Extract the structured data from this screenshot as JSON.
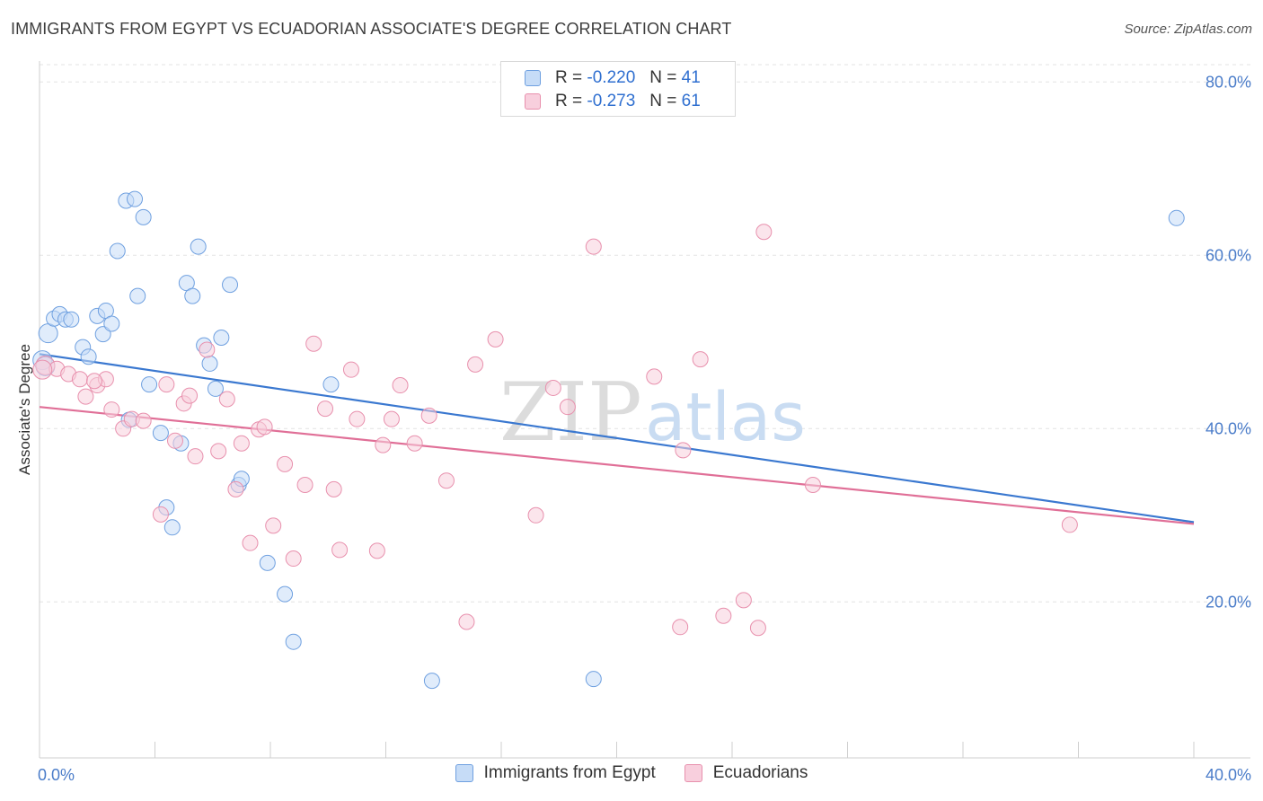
{
  "header": {
    "title": "IMMIGRANTS FROM EGYPT VS ECUADORIAN ASSOCIATE'S DEGREE CORRELATION CHART",
    "source": "Source: ZipAtlas.com"
  },
  "watermark": {
    "zip": "ZIP",
    "atlas": "atlas"
  },
  "legend": {
    "series": [
      {
        "r_label": "R =",
        "r_value": "-0.220",
        "n_label": "N =",
        "n_value": "41",
        "color": "#6fa0e0",
        "fill": "#c6dcf7"
      },
      {
        "r_label": "R =",
        "r_value": "-0.273",
        "n_label": "N =",
        "n_value": "61",
        "color": "#e890ad",
        "fill": "#f8cfdd"
      }
    ]
  },
  "chart_data": {
    "type": "scatter",
    "title": "IMMIGRANTS FROM EGYPT VS ECUADORIAN ASSOCIATE'S DEGREE CORRELATION CHART",
    "xlabel": "",
    "ylabel": "Associate's Degree",
    "xlim": [
      0,
      40
    ],
    "ylim": [
      2,
      82
    ],
    "x_tick_labels": [
      "0.0%",
      "40.0%"
    ],
    "y_ticks": [
      20,
      40,
      60,
      80
    ],
    "y_tick_labels": [
      "20.0%",
      "40.0%",
      "60.0%",
      "80.0%"
    ],
    "grid": true,
    "legend_position": "top-center",
    "series": [
      {
        "name": "Immigrants from Egypt",
        "color": "#3a78d0",
        "trend": {
          "x": [
            0,
            40
          ],
          "y": [
            48.6,
            29.2
          ]
        },
        "points": [
          {
            "x": 0.3,
            "y": 51.0
          },
          {
            "x": 0.5,
            "y": 52.7
          },
          {
            "x": 0.7,
            "y": 53.2
          },
          {
            "x": 0.9,
            "y": 52.6
          },
          {
            "x": 1.1,
            "y": 52.6
          },
          {
            "x": 1.5,
            "y": 49.4
          },
          {
            "x": 1.7,
            "y": 48.3
          },
          {
            "x": 2.0,
            "y": 53.0
          },
          {
            "x": 2.2,
            "y": 50.9
          },
          {
            "x": 2.3,
            "y": 53.6
          },
          {
            "x": 2.5,
            "y": 52.1
          },
          {
            "x": 2.7,
            "y": 60.5
          },
          {
            "x": 3.0,
            "y": 66.3
          },
          {
            "x": 3.3,
            "y": 66.5
          },
          {
            "x": 3.4,
            "y": 55.3
          },
          {
            "x": 3.6,
            "y": 64.4
          },
          {
            "x": 3.1,
            "y": 41.0
          },
          {
            "x": 3.8,
            "y": 45.1
          },
          {
            "x": 4.2,
            "y": 39.5
          },
          {
            "x": 4.4,
            "y": 30.9
          },
          {
            "x": 4.6,
            "y": 28.6
          },
          {
            "x": 4.9,
            "y": 38.3
          },
          {
            "x": 5.1,
            "y": 56.8
          },
          {
            "x": 5.3,
            "y": 55.3
          },
          {
            "x": 5.5,
            "y": 61.0
          },
          {
            "x": 5.7,
            "y": 49.6
          },
          {
            "x": 5.9,
            "y": 47.5
          },
          {
            "x": 6.1,
            "y": 44.6
          },
          {
            "x": 6.3,
            "y": 50.5
          },
          {
            "x": 6.6,
            "y": 56.6
          },
          {
            "x": 6.9,
            "y": 33.5
          },
          {
            "x": 7.0,
            "y": 34.2
          },
          {
            "x": 7.9,
            "y": 24.5
          },
          {
            "x": 8.8,
            "y": 15.4
          },
          {
            "x": 8.5,
            "y": 20.9
          },
          {
            "x": 10.1,
            "y": 45.1
          },
          {
            "x": 13.6,
            "y": 10.9
          },
          {
            "x": 19.2,
            "y": 11.1
          },
          {
            "x": 39.4,
            "y": 64.3
          },
          {
            "x": 0.1,
            "y": 47.9
          },
          {
            "x": 0.2,
            "y": 47.2
          }
        ]
      },
      {
        "name": "Ecuadorians",
        "color": "#e06f97",
        "trend": {
          "x": [
            0,
            40
          ],
          "y": [
            42.5,
            29.0
          ]
        },
        "points": [
          {
            "x": 0.2,
            "y": 47.3
          },
          {
            "x": 0.6,
            "y": 46.9
          },
          {
            "x": 1.0,
            "y": 46.3
          },
          {
            "x": 1.4,
            "y": 45.7
          },
          {
            "x": 1.6,
            "y": 43.7
          },
          {
            "x": 2.0,
            "y": 45.0
          },
          {
            "x": 2.3,
            "y": 45.7
          },
          {
            "x": 2.5,
            "y": 42.2
          },
          {
            "x": 2.9,
            "y": 40.0
          },
          {
            "x": 3.2,
            "y": 41.1
          },
          {
            "x": 3.6,
            "y": 40.9
          },
          {
            "x": 4.2,
            "y": 30.1
          },
          {
            "x": 4.4,
            "y": 45.1
          },
          {
            "x": 4.7,
            "y": 38.6
          },
          {
            "x": 5.0,
            "y": 42.9
          },
          {
            "x": 5.2,
            "y": 43.8
          },
          {
            "x": 5.4,
            "y": 36.8
          },
          {
            "x": 5.8,
            "y": 49.1
          },
          {
            "x": 6.2,
            "y": 37.4
          },
          {
            "x": 6.5,
            "y": 43.4
          },
          {
            "x": 6.8,
            "y": 33.0
          },
          {
            "x": 7.0,
            "y": 38.3
          },
          {
            "x": 7.3,
            "y": 26.8
          },
          {
            "x": 7.6,
            "y": 39.9
          },
          {
            "x": 7.8,
            "y": 40.2
          },
          {
            "x": 8.1,
            "y": 28.8
          },
          {
            "x": 8.5,
            "y": 35.9
          },
          {
            "x": 8.8,
            "y": 25.0
          },
          {
            "x": 9.2,
            "y": 33.5
          },
          {
            "x": 9.5,
            "y": 49.8
          },
          {
            "x": 9.9,
            "y": 42.3
          },
          {
            "x": 10.2,
            "y": 33.0
          },
          {
            "x": 10.4,
            "y": 26.0
          },
          {
            "x": 10.8,
            "y": 46.8
          },
          {
            "x": 11.0,
            "y": 41.1
          },
          {
            "x": 11.7,
            "y": 25.9
          },
          {
            "x": 11.9,
            "y": 38.1
          },
          {
            "x": 12.2,
            "y": 41.1
          },
          {
            "x": 12.5,
            "y": 45.0
          },
          {
            "x": 13.0,
            "y": 38.3
          },
          {
            "x": 13.5,
            "y": 41.5
          },
          {
            "x": 14.1,
            "y": 34.0
          },
          {
            "x": 14.8,
            "y": 17.7
          },
          {
            "x": 15.1,
            "y": 47.4
          },
          {
            "x": 15.8,
            "y": 50.3
          },
          {
            "x": 17.2,
            "y": 30.0
          },
          {
            "x": 17.8,
            "y": 44.7
          },
          {
            "x": 18.3,
            "y": 42.5
          },
          {
            "x": 19.2,
            "y": 61.0
          },
          {
            "x": 21.3,
            "y": 46.0
          },
          {
            "x": 22.2,
            "y": 17.1
          },
          {
            "x": 22.9,
            "y": 48.0
          },
          {
            "x": 22.3,
            "y": 37.5
          },
          {
            "x": 23.7,
            "y": 18.4
          },
          {
            "x": 24.4,
            "y": 20.2
          },
          {
            "x": 24.9,
            "y": 17.0
          },
          {
            "x": 25.1,
            "y": 62.7
          },
          {
            "x": 26.8,
            "y": 33.5
          },
          {
            "x": 35.7,
            "y": 28.9
          },
          {
            "x": 0.1,
            "y": 46.8
          },
          {
            "x": 1.9,
            "y": 45.5
          }
        ]
      }
    ]
  }
}
